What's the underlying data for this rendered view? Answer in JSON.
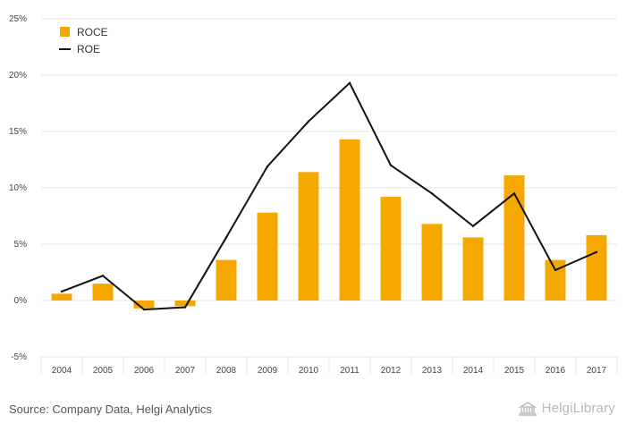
{
  "chart_data": {
    "type": "bar",
    "categories": [
      "2004",
      "2005",
      "2006",
      "2007",
      "2008",
      "2009",
      "2010",
      "2011",
      "2012",
      "2013",
      "2014",
      "2015",
      "2016",
      "2017"
    ],
    "series": [
      {
        "name": "ROCE",
        "kind": "bar",
        "color": "#f5a800",
        "values": [
          0.6,
          1.5,
          -0.7,
          -0.5,
          3.6,
          7.8,
          11.4,
          14.3,
          9.2,
          6.8,
          5.6,
          11.1,
          3.6,
          5.8
        ]
      },
      {
        "name": "ROE",
        "kind": "line",
        "color": "#111111",
        "values": [
          0.8,
          2.2,
          -0.8,
          -0.6,
          5.6,
          11.9,
          15.9,
          19.3,
          12.0,
          9.5,
          6.6,
          9.5,
          2.7,
          4.3
        ]
      }
    ],
    "yticks": [
      "-5%",
      "0%",
      "5%",
      "10%",
      "15%",
      "20%",
      "25%"
    ],
    "ylim": [
      -5,
      25
    ],
    "y_unit": "%",
    "grid": true,
    "legend_position": "top-left"
  },
  "footer": {
    "source": "Source: Company Data, Helgi Analytics",
    "brand": "HelgiLibrary"
  }
}
